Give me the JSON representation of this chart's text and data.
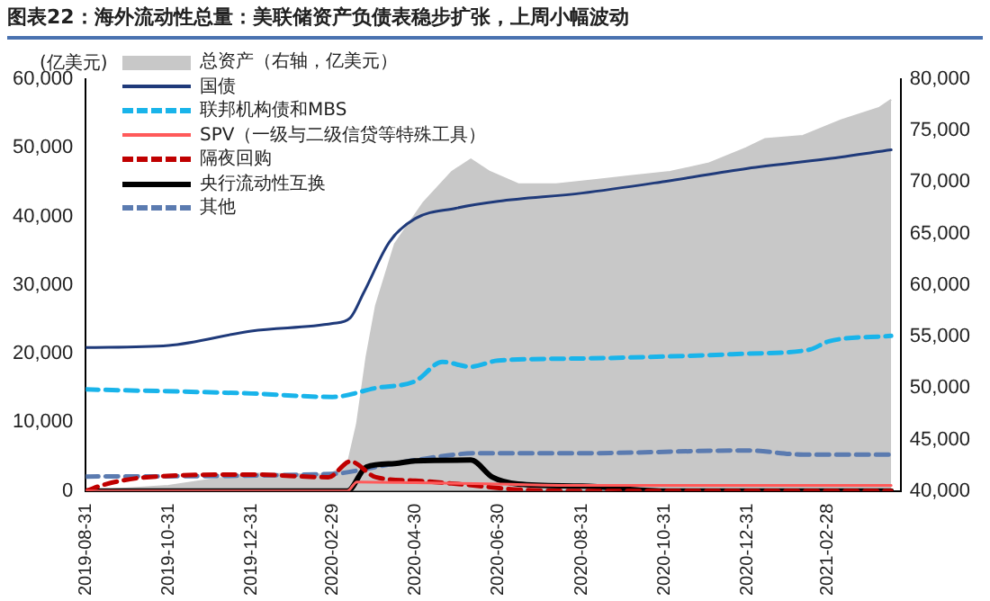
{
  "chart_data": {
    "type": "line",
    "title": "图表22：海外流动性总量：美联储资产负债表稳步扩张，上周小幅波动",
    "ylabel": "(亿美元)",
    "legend": "top left",
    "grid": false,
    "xlim": [
      "2019-08-31",
      "2021-04-23"
    ],
    "xticks": [
      "2019-08-31",
      "2019-10-31",
      "2019-12-31",
      "2020-02-29",
      "2020-04-30",
      "2020-06-30",
      "2020-08-31",
      "2020-10-31",
      "2020-12-31",
      "2021-02-28"
    ],
    "ylim": [
      0,
      60000
    ],
    "yticks": [
      {
        "value": 0,
        "label": "0"
      },
      {
        "value": 10000,
        "label": "10,000"
      },
      {
        "value": 20000,
        "label": "20,000"
      },
      {
        "value": 30000,
        "label": "30,000"
      },
      {
        "value": 40000,
        "label": "40,000"
      },
      {
        "value": 50000,
        "label": "50,000"
      },
      {
        "value": 60000,
        "label": "60,000"
      }
    ],
    "y2lim": [
      40000,
      80000
    ],
    "y2ticks": [
      {
        "value": 40000,
        "label": "40,000"
      },
      {
        "value": 45000,
        "label": "45,000"
      },
      {
        "value": 50000,
        "label": "50,000"
      },
      {
        "value": 55000,
        "label": "55,000"
      },
      {
        "value": 60000,
        "label": "60,000"
      },
      {
        "value": 65000,
        "label": "65,000"
      },
      {
        "value": 70000,
        "label": "70,000"
      },
      {
        "value": 75000,
        "label": "75,000"
      },
      {
        "value": 80000,
        "label": "80,000"
      }
    ],
    "series": [
      {
        "name": "总资产（右轴，亿美元）",
        "type": "area",
        "axis": "y2",
        "color": "#c8c8c8",
        "x": [
          "2019-08-31",
          "2019-10-31",
          "2019-12-31",
          "2020-02-26",
          "2020-03-11",
          "2020-03-18",
          "2020-03-25",
          "2020-04-01",
          "2020-04-15",
          "2020-05-06",
          "2020-05-27",
          "2020-06-10",
          "2020-06-24",
          "2020-07-15",
          "2020-08-12",
          "2020-09-09",
          "2020-10-07",
          "2020-11-04",
          "2020-12-02",
          "2020-12-30",
          "2021-01-13",
          "2021-02-10",
          "2021-03-10",
          "2021-04-07",
          "2021-04-16"
        ],
        "values": [
          40000,
          40500,
          41700,
          41600,
          42500,
          46500,
          53000,
          58000,
          64000,
          68000,
          71000,
          72200,
          71000,
          69800,
          69800,
          70200,
          70600,
          71000,
          71800,
          73300,
          74200,
          74500,
          76000,
          77200,
          78000
        ]
      },
      {
        "name": "国债",
        "line_style": "solid",
        "color": "#1f3a7a",
        "x": [
          "2019-08-31",
          "2019-10-31",
          "2019-12-31",
          "2020-02-29",
          "2020-03-13",
          "2020-03-23",
          "2020-04-11",
          "2020-04-30",
          "2020-05-30",
          "2020-06-30",
          "2020-08-31",
          "2020-10-31",
          "2020-12-31",
          "2021-02-28",
          "2021-04-16"
        ],
        "values": [
          20900,
          21200,
          23300,
          24400,
          25200,
          28900,
          36300,
          39700,
          41200,
          42200,
          43400,
          45100,
          47000,
          48400,
          49700
        ]
      },
      {
        "name": "联邦机构债和MBS",
        "line_style": "dashed",
        "color": "#19b4ea",
        "x": [
          "2019-08-31",
          "2019-12-31",
          "2020-02-29",
          "2020-04-01",
          "2020-04-30",
          "2020-05-20",
          "2020-06-10",
          "2020-06-30",
          "2020-08-31",
          "2020-12-31",
          "2021-02-15",
          "2021-03-01",
          "2021-04-16"
        ],
        "values": [
          14800,
          14200,
          13700,
          15000,
          16000,
          18800,
          18100,
          19000,
          19300,
          20000,
          20600,
          21800,
          22600
        ]
      },
      {
        "name": "SPV（一级与二级信贷等特殊工具）",
        "line_style": "solid",
        "color": "#ff5a5a",
        "x": [
          "2019-08-31",
          "2020-03-11",
          "2020-03-18",
          "2020-04-30",
          "2020-06-30",
          "2020-08-31",
          "2021-04-16"
        ],
        "values": [
          0,
          0,
          1300,
          1200,
          1000,
          800,
          800
        ]
      },
      {
        "name": "隔夜回购",
        "line_style": "dashed",
        "color": "#c00000",
        "x": [
          "2019-08-31",
          "2019-09-15",
          "2019-10-15",
          "2019-12-31",
          "2020-02-26",
          "2020-03-13",
          "2020-04-01",
          "2020-04-30",
          "2020-06-01",
          "2020-07-15",
          "2020-08-31",
          "2021-04-16"
        ],
        "values": [
          0,
          1000,
          2000,
          2400,
          2000,
          4300,
          2000,
          1500,
          1000,
          200,
          0,
          0
        ]
      },
      {
        "name": "央行流动性互换",
        "line_style": "solid",
        "color": "#000000",
        "x": [
          "2019-08-31",
          "2020-03-11",
          "2020-03-25",
          "2020-04-15",
          "2020-04-30",
          "2020-06-10",
          "2020-06-26",
          "2020-07-15",
          "2020-08-31",
          "2020-10-31",
          "2021-04-16"
        ],
        "values": [
          0,
          0,
          3500,
          4000,
          4400,
          4500,
          2000,
          1000,
          700,
          0,
          0
        ]
      },
      {
        "name": "其他",
        "line_style": "dashed",
        "color": "#5b7bb0",
        "x": [
          "2019-08-31",
          "2020-02-29",
          "2020-04-01",
          "2020-04-30",
          "2020-06-15",
          "2020-08-31",
          "2020-12-31",
          "2021-02-10",
          "2021-04-16"
        ],
        "values": [
          2100,
          2500,
          3500,
          4500,
          5500,
          5500,
          5900,
          5300,
          5300
        ]
      }
    ]
  }
}
